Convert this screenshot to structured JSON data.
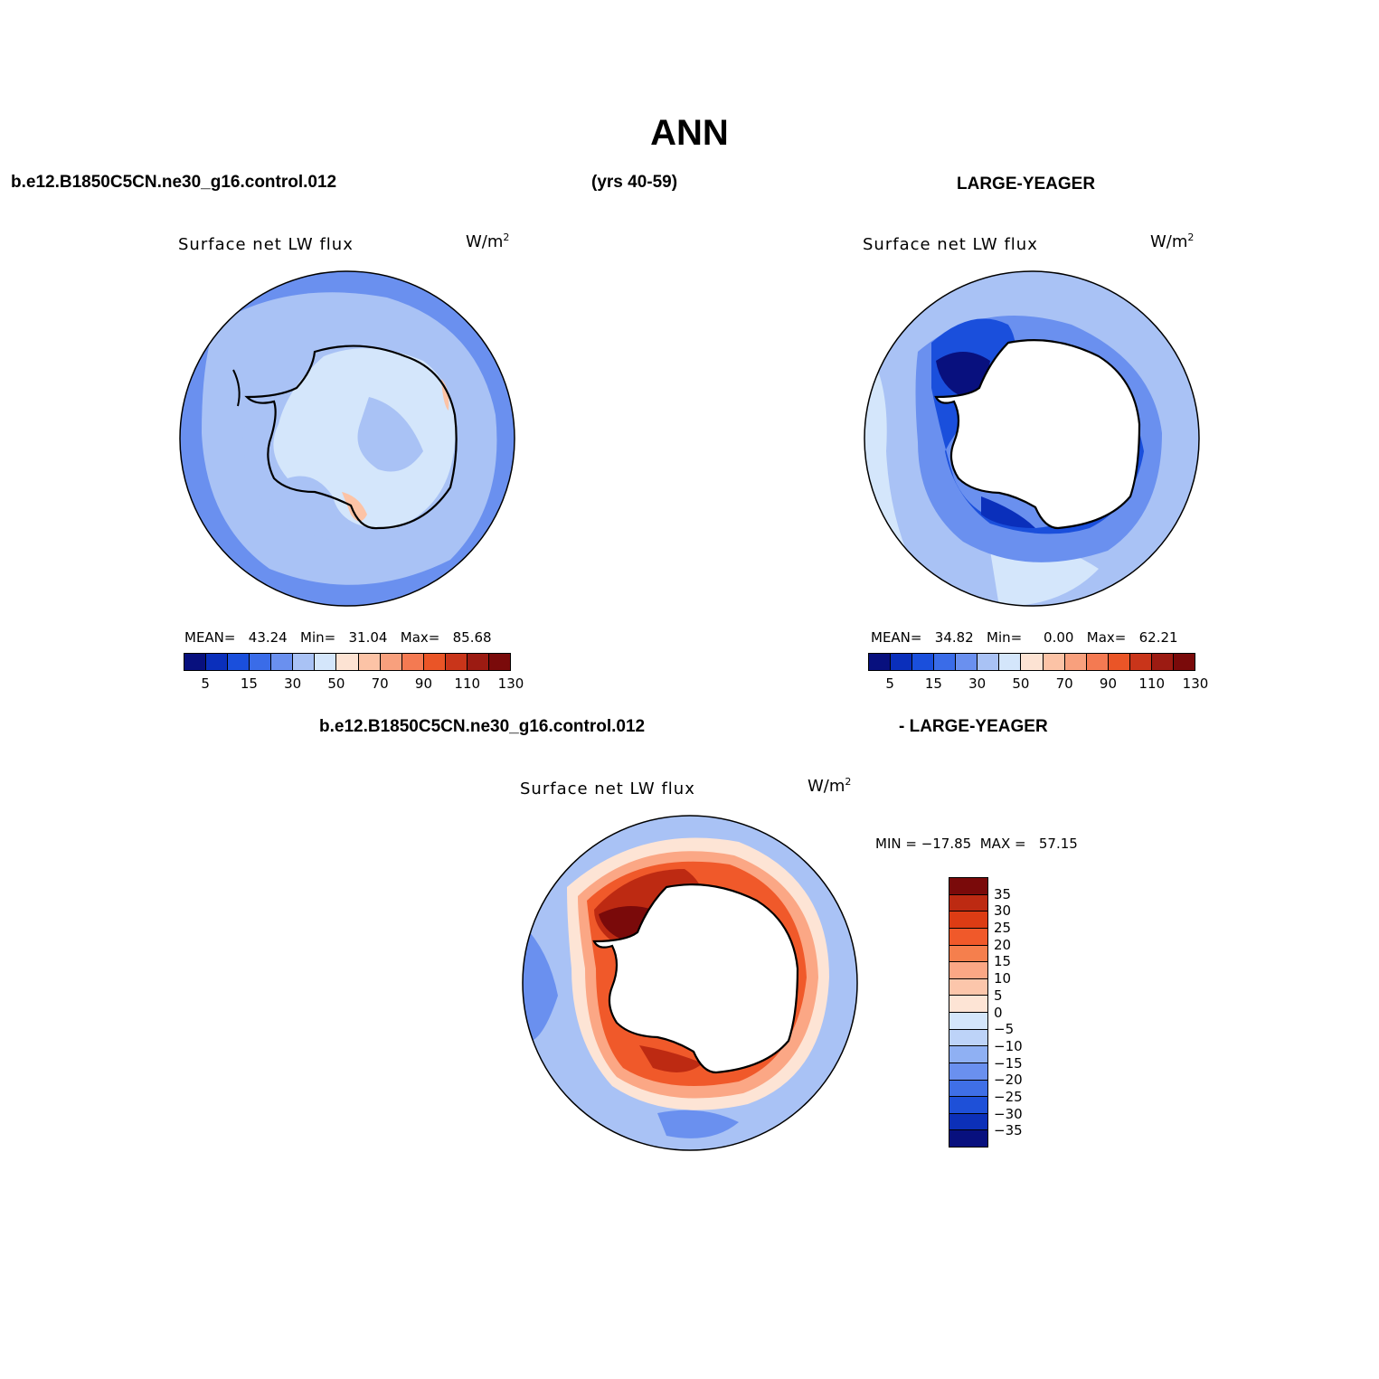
{
  "page_title": "ANN",
  "header": {
    "case_left": "b.e12.B1850C5CN.ne30_g16.control.012",
    "years": "(yrs 40-59)",
    "case_right": "LARGE-YEAGER",
    "diff_left": "b.e12.B1850C5CN.ne30_g16.control.012",
    "diff_right": "- LARGE-YEAGER"
  },
  "panels": [
    {
      "title": "Surface net LW flux",
      "unit": "W/m",
      "unit_sup": "2",
      "stats": "MEAN=   43.24   Min=   31.04   Max=   85.68"
    },
    {
      "title": "Surface net LW flux",
      "unit": "W/m",
      "unit_sup": "2",
      "stats": "MEAN=   34.82   Min=     0.00   Max=   62.21"
    },
    {
      "title": "Surface net LW flux",
      "unit": "W/m",
      "unit_sup": "2",
      "stats": "MIN = −17.85  MAX =   57.15"
    }
  ],
  "colorbar_abs": {
    "colors": [
      "#08107e",
      "#0a2fbb",
      "#1a4fdc",
      "#3a6ce8",
      "#6a90ef",
      "#a9c2f5",
      "#d4e6fb",
      "#fde3d3",
      "#fcc3a6",
      "#f8a07d",
      "#f47a52",
      "#ea5527",
      "#c9351a",
      "#9c1b12",
      "#7a0a0a"
    ],
    "labels": [
      "5",
      "15",
      "30",
      "50",
      "70",
      "90",
      "110",
      "130"
    ]
  },
  "colorbar_diff": {
    "colors": [
      "#7a0a0a",
      "#bd2a12",
      "#dd3c14",
      "#f0592a",
      "#f57f4d",
      "#fba785",
      "#fcc6ab",
      "#fde4d5",
      "#d4e6fb",
      "#bdd3f8",
      "#8fb0f3",
      "#6a90ef",
      "#3f6fe6",
      "#1e50d8",
      "#0c30b8",
      "#08107e"
    ],
    "labels": [
      "35",
      "30",
      "25",
      "20",
      "15",
      "10",
      "5",
      "0",
      "−5",
      "−10",
      "−15",
      "−20",
      "−25",
      "−30",
      "−35"
    ]
  },
  "map_colors": {
    "ocean_light": "#a9c2f5",
    "ocean_mid": "#6a90ef",
    "ice_light": "#d4e6fb",
    "deep_blue": "#1a4fdc",
    "darkest": "#08107e",
    "warm1": "#fcc3a6",
    "warm2": "#f47a52",
    "warm3": "#c9351a",
    "warm4": "#7a0a0a"
  }
}
